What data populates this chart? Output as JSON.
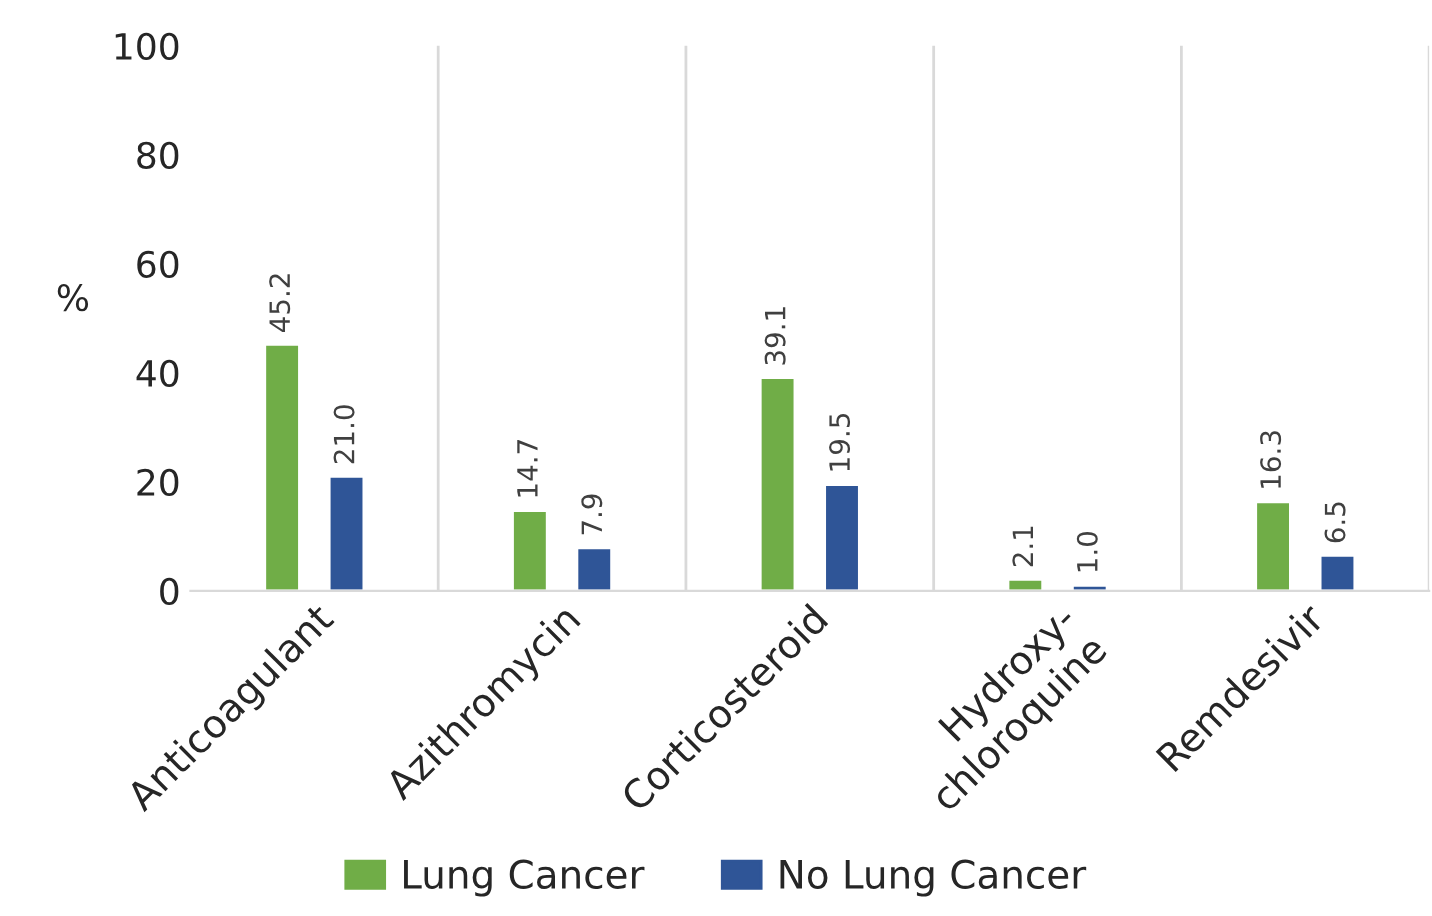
{
  "chart_data": {
    "type": "bar",
    "ylabel": "%",
    "categories": [
      "Anticoagulant",
      "Azithromycin",
      "Corticosteroid",
      "Hydroxy-\nchloroquine",
      "Remdesivir"
    ],
    "series": [
      {
        "name": "Lung Cancer",
        "color": "#70ad47",
        "values": [
          45.2,
          14.7,
          39.1,
          2.1,
          16.3
        ]
      },
      {
        "name": "No Lung Cancer",
        "color": "#2f5597",
        "values": [
          21.0,
          7.9,
          19.5,
          1.0,
          6.5
        ]
      }
    ],
    "value_labels": [
      [
        "45.2",
        "14.7",
        "39.1",
        "2.1",
        "16.3"
      ],
      [
        "21.0",
        "7.9",
        "19.5",
        "1.0",
        "6.5"
      ]
    ],
    "ylim": [
      0,
      100
    ],
    "yticks": [
      0,
      20,
      40,
      60,
      80,
      100
    ],
    "grid": "x",
    "legend": "bottom"
  }
}
